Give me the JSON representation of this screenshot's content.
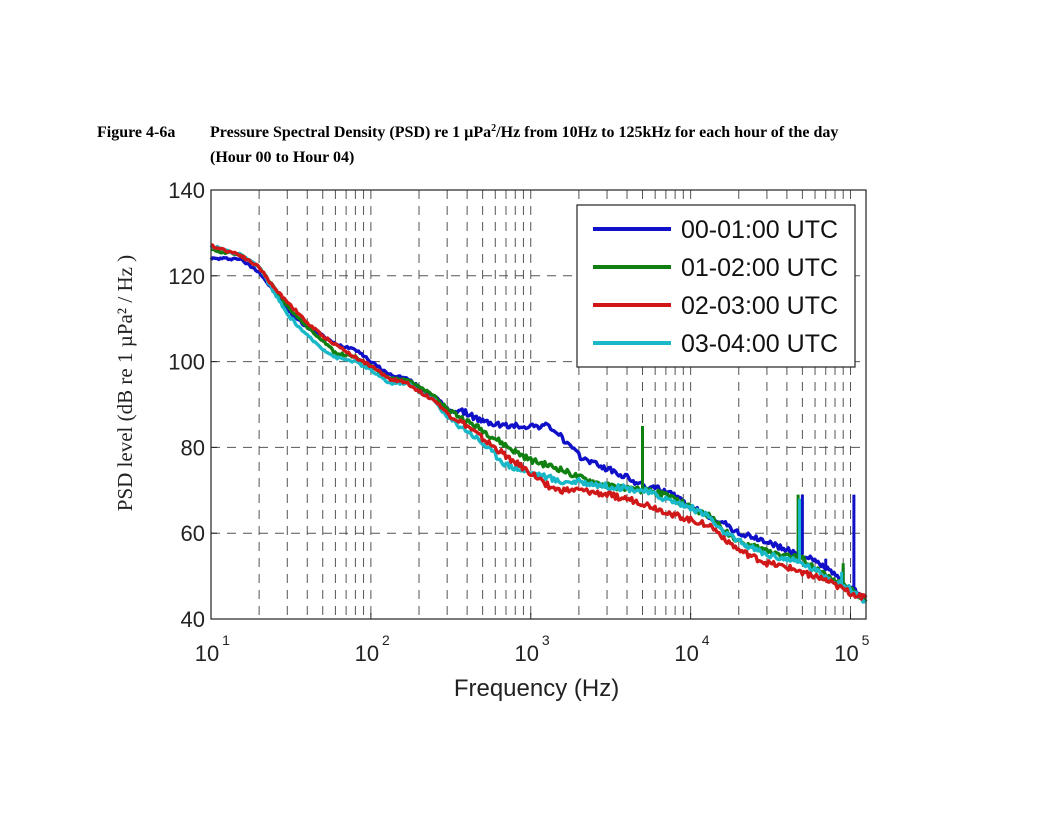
{
  "caption": {
    "figure_number": "Figure 4-6a",
    "title_pre": "Pressure Spectral Density (PSD) re 1 µPa",
    "title_sup": "2",
    "title_post": "/Hz from 10Hz to 125kHz for each hour of the day",
    "title_line2": "(Hour 00 to Hour 04)"
  },
  "chart_data": {
    "type": "line",
    "xscale": "log",
    "xlim": [
      10,
      125000
    ],
    "ylim": [
      40,
      140
    ],
    "xticks": [
      10,
      100,
      1000,
      10000,
      100000
    ],
    "xtick_labels": [
      {
        "base": "10",
        "exp": "1"
      },
      {
        "base": "10",
        "exp": "2"
      },
      {
        "base": "10",
        "exp": "3"
      },
      {
        "base": "10",
        "exp": "4"
      },
      {
        "base": "10",
        "exp": "5"
      }
    ],
    "yticks": [
      40,
      60,
      80,
      100,
      120,
      140
    ],
    "ytick_labels": [
      "40",
      "60",
      "80",
      "100",
      "120",
      "140"
    ],
    "xlabel": "Frequency (Hz)",
    "ylabel": "PSD level (dB re 1 µPa² / Hz )",
    "grid": true,
    "legend_position": "top-right",
    "series": [
      {
        "name": "00-01:00 UTC",
        "color": "#1010c8",
        "points": [
          [
            10,
            124
          ],
          [
            15,
            124
          ],
          [
            20,
            121
          ],
          [
            25,
            116
          ],
          [
            30,
            112
          ],
          [
            40,
            108
          ],
          [
            50,
            106
          ],
          [
            60,
            104
          ],
          [
            80,
            103
          ],
          [
            100,
            100
          ],
          [
            130,
            97
          ],
          [
            170,
            96
          ],
          [
            200,
            94
          ],
          [
            250,
            92
          ],
          [
            300,
            89
          ],
          [
            400,
            88
          ],
          [
            500,
            86
          ],
          [
            700,
            85
          ],
          [
            1000,
            85
          ],
          [
            1300,
            85
          ],
          [
            1500,
            83
          ],
          [
            2000,
            78
          ],
          [
            3000,
            75
          ],
          [
            4000,
            73
          ],
          [
            5000,
            71
          ],
          [
            7000,
            70
          ],
          [
            10000,
            66
          ],
          [
            13000,
            64
          ],
          [
            15000,
            63
          ],
          [
            20000,
            60
          ],
          [
            30000,
            58
          ],
          [
            40000,
            56
          ],
          [
            50000,
            55
          ],
          [
            70000,
            52
          ],
          [
            100000,
            47
          ],
          [
            125000,
            45
          ]
        ],
        "spikes": [
          [
            50000,
            69
          ],
          [
            70000,
            54
          ],
          [
            90000,
            52
          ],
          [
            105000,
            69
          ]
        ]
      },
      {
        "name": "01-02:00 UTC",
        "color": "#108010",
        "points": [
          [
            10,
            126
          ],
          [
            15,
            125
          ],
          [
            20,
            122
          ],
          [
            25,
            117
          ],
          [
            30,
            113
          ],
          [
            40,
            108
          ],
          [
            50,
            105
          ],
          [
            60,
            102
          ],
          [
            80,
            101
          ],
          [
            100,
            99
          ],
          [
            130,
            96
          ],
          [
            170,
            96
          ],
          [
            200,
            94
          ],
          [
            250,
            92
          ],
          [
            300,
            89
          ],
          [
            400,
            86
          ],
          [
            500,
            84
          ],
          [
            600,
            82
          ],
          [
            800,
            79
          ],
          [
            1000,
            77
          ],
          [
            1500,
            75
          ],
          [
            2000,
            73
          ],
          [
            3000,
            71
          ],
          [
            5000,
            70
          ],
          [
            7000,
            69
          ],
          [
            10000,
            66
          ],
          [
            13000,
            64
          ],
          [
            15000,
            62
          ],
          [
            20000,
            58
          ],
          [
            30000,
            56
          ],
          [
            40000,
            55
          ],
          [
            50000,
            54
          ],
          [
            70000,
            50
          ],
          [
            100000,
            47
          ],
          [
            125000,
            44
          ]
        ],
        "spikes": [
          [
            5000,
            85
          ],
          [
            47000,
            69
          ],
          [
            90000,
            53
          ]
        ]
      },
      {
        "name": "02-03:00 UTC",
        "color": "#d01818",
        "points": [
          [
            10,
            127
          ],
          [
            15,
            125
          ],
          [
            20,
            122
          ],
          [
            25,
            117
          ],
          [
            30,
            114
          ],
          [
            40,
            109
          ],
          [
            50,
            106
          ],
          [
            60,
            104
          ],
          [
            80,
            101
          ],
          [
            100,
            99
          ],
          [
            130,
            96
          ],
          [
            170,
            95
          ],
          [
            200,
            93
          ],
          [
            250,
            91
          ],
          [
            300,
            88
          ],
          [
            400,
            85
          ],
          [
            500,
            82
          ],
          [
            700,
            78
          ],
          [
            1000,
            74
          ],
          [
            1300,
            71
          ],
          [
            1500,
            70
          ],
          [
            2000,
            70
          ],
          [
            3000,
            69
          ],
          [
            4000,
            68
          ],
          [
            5000,
            67
          ],
          [
            7000,
            65
          ],
          [
            10000,
            63
          ],
          [
            13000,
            62
          ],
          [
            15000,
            60
          ],
          [
            20000,
            56
          ],
          [
            30000,
            53
          ],
          [
            40000,
            52
          ],
          [
            50000,
            51
          ],
          [
            70000,
            49
          ],
          [
            100000,
            46
          ],
          [
            125000,
            45
          ]
        ],
        "spikes": []
      },
      {
        "name": "03-04:00 UTC",
        "color": "#18b8c8",
        "points": [
          [
            10,
            127
          ],
          [
            15,
            125
          ],
          [
            20,
            122
          ],
          [
            25,
            116
          ],
          [
            30,
            111
          ],
          [
            40,
            106
          ],
          [
            50,
            103
          ],
          [
            60,
            101
          ],
          [
            80,
            100
          ],
          [
            100,
            98
          ],
          [
            130,
            95
          ],
          [
            170,
            95
          ],
          [
            200,
            93
          ],
          [
            250,
            91
          ],
          [
            300,
            87
          ],
          [
            400,
            84
          ],
          [
            500,
            81
          ],
          [
            700,
            76
          ],
          [
            1000,
            74
          ],
          [
            1300,
            73
          ],
          [
            1500,
            72
          ],
          [
            2000,
            72
          ],
          [
            3000,
            71
          ],
          [
            5000,
            70
          ],
          [
            7000,
            68
          ],
          [
            10000,
            66
          ],
          [
            13000,
            64
          ],
          [
            15000,
            61
          ],
          [
            20000,
            58
          ],
          [
            30000,
            55
          ],
          [
            40000,
            54
          ],
          [
            50000,
            53
          ],
          [
            70000,
            50
          ],
          [
            100000,
            47
          ],
          [
            125000,
            44
          ]
        ],
        "spikes": [
          [
            48000,
            68
          ],
          [
            88000,
            51
          ]
        ]
      }
    ]
  }
}
